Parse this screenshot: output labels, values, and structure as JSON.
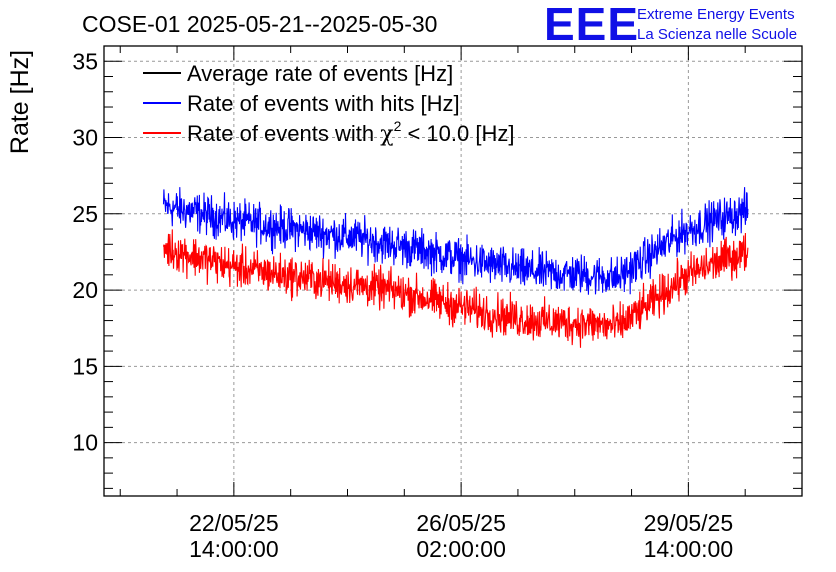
{
  "chart_data": {
    "type": "line",
    "title": "COSE-01 2025-05-21--2025-05-30",
    "ylabel": "Rate [Hz]",
    "xlabel": "",
    "ylim": [
      6.5,
      36
    ],
    "yticks": [
      10,
      15,
      20,
      25,
      30,
      35
    ],
    "x_range": [
      "2025-05-20 14:00",
      "2025-05-31 08:00"
    ],
    "xticks": [
      {
        "x": "2025-05-22 14:00",
        "date": "22/05/25",
        "time": "14:00:00"
      },
      {
        "x": "2025-05-26 02:00",
        "date": "26/05/25",
        "time": "02:00:00"
      },
      {
        "x": "2025-05-29 14:00",
        "date": "29/05/25",
        "time": "14:00:00"
      }
    ],
    "grid": true,
    "legend_position": "top-left",
    "series": [
      {
        "name": "Average rate of events [Hz]",
        "color": "#000000",
        "x": [],
        "values": []
      },
      {
        "name": "Rate of events with hits [Hz]",
        "color": "#0000ff",
        "x": [
          "2025-05-21 12:00",
          "2025-05-22 00:00",
          "2025-05-22 12:00",
          "2025-05-23 00:00",
          "2025-05-23 12:00",
          "2025-05-24 00:00",
          "2025-05-24 12:00",
          "2025-05-25 00:00",
          "2025-05-25 12:00",
          "2025-05-26 00:00",
          "2025-05-26 12:00",
          "2025-05-27 00:00",
          "2025-05-27 12:00",
          "2025-05-28 00:00",
          "2025-05-28 12:00",
          "2025-05-29 00:00",
          "2025-05-29 12:00",
          "2025-05-30 00:00",
          "2025-05-30 12:00"
        ],
        "values": [
          25.5,
          25.1,
          24.6,
          24.3,
          24.0,
          23.7,
          23.4,
          23.0,
          22.6,
          22.1,
          21.7,
          21.3,
          21.1,
          21.0,
          20.8,
          22.3,
          23.8,
          24.6,
          25.2
        ]
      },
      {
        "name": "Rate of events with χ² < 10.0 [Hz]",
        "color": "#ff0000",
        "x": [
          "2025-05-21 12:00",
          "2025-05-22 00:00",
          "2025-05-22 12:00",
          "2025-05-23 00:00",
          "2025-05-23 12:00",
          "2025-05-24 00:00",
          "2025-05-24 12:00",
          "2025-05-25 00:00",
          "2025-05-25 12:00",
          "2025-05-26 00:00",
          "2025-05-26 12:00",
          "2025-05-27 00:00",
          "2025-05-27 12:00",
          "2025-05-28 00:00",
          "2025-05-28 12:00",
          "2025-05-29 00:00",
          "2025-05-29 12:00",
          "2025-05-30 00:00",
          "2025-05-30 12:00"
        ],
        "values": [
          22.8,
          22.2,
          21.6,
          21.2,
          20.9,
          20.6,
          20.3,
          20.0,
          19.5,
          19.0,
          18.5,
          18.1,
          17.9,
          17.8,
          17.6,
          19.1,
          20.8,
          21.8,
          22.5
        ]
      }
    ]
  },
  "legend": {
    "items": [
      {
        "text": "Average rate of events [Hz]",
        "color": "#000000"
      },
      {
        "text": "Rate of events with hits [Hz]",
        "color": "#0000ff"
      },
      {
        "before": "Rate of events with ",
        "chi": "χ",
        "sup": "2",
        "after": " < 10.0 [Hz]",
        "color": "#ff0000"
      }
    ]
  },
  "logo": {
    "mark": "EEE",
    "line1": "Extreme Energy Events",
    "line2": "La Scienza nelle Scuole",
    "color": "#1010e6"
  }
}
